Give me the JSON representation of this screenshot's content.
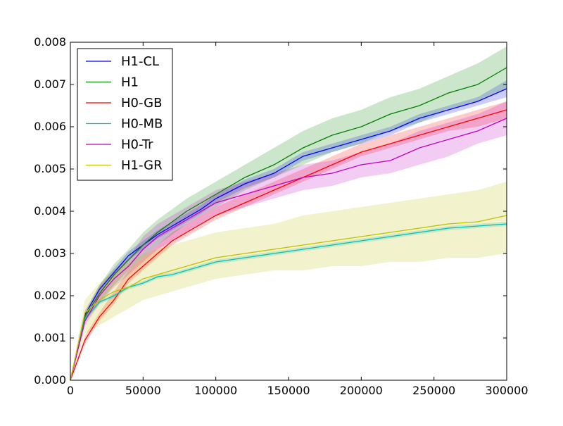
{
  "chart_data": {
    "type": "line",
    "title": "",
    "xlabel": "",
    "ylabel": "",
    "xlim": [
      0,
      300000
    ],
    "ylim": [
      0,
      0.008
    ],
    "x_ticks": [
      0,
      50000,
      100000,
      150000,
      200000,
      250000,
      300000
    ],
    "x_tick_labels": [
      "0",
      "50000",
      "100000",
      "150000",
      "200000",
      "250000",
      "300000"
    ],
    "y_ticks": [
      0,
      0.001,
      0.002,
      0.003,
      0.004,
      0.005,
      0.006,
      0.007,
      0.008
    ],
    "y_tick_labels": [
      "0.000",
      "0.001",
      "0.002",
      "0.003",
      "0.004",
      "0.005",
      "0.006",
      "0.007",
      "0.008"
    ],
    "grid": false,
    "legend_position": "top-left",
    "x": [
      0,
      10000,
      20000,
      30000,
      40000,
      50000,
      60000,
      70000,
      80000,
      90000,
      100000,
      120000,
      140000,
      160000,
      180000,
      200000,
      220000,
      240000,
      260000,
      280000,
      300000
    ],
    "series": [
      {
        "name": "H1-CL",
        "color": "#0000ff",
        "values": [
          0,
          0.00155,
          0.00215,
          0.00255,
          0.00295,
          0.0032,
          0.00345,
          0.00365,
          0.00385,
          0.00405,
          0.0043,
          0.00465,
          0.0049,
          0.0053,
          0.0055,
          0.0057,
          0.0059,
          0.0062,
          0.0064,
          0.0066,
          0.0069
        ],
        "lower": [
          0,
          0.00145,
          0.00205,
          0.00245,
          0.00285,
          0.0031,
          0.00335,
          0.00355,
          0.00375,
          0.00395,
          0.0042,
          0.00455,
          0.0048,
          0.0052,
          0.0054,
          0.0056,
          0.0058,
          0.0061,
          0.0063,
          0.0065,
          0.0067
        ],
        "upper": [
          0,
          0.00165,
          0.00225,
          0.00265,
          0.00305,
          0.0033,
          0.00355,
          0.00375,
          0.00395,
          0.00415,
          0.0044,
          0.00475,
          0.005,
          0.0054,
          0.0056,
          0.0058,
          0.006,
          0.0063,
          0.0065,
          0.0067,
          0.0071
        ]
      },
      {
        "name": "H1",
        "color": "#008000",
        "values": [
          0,
          0.0015,
          0.00205,
          0.0025,
          0.00285,
          0.0032,
          0.0035,
          0.00375,
          0.004,
          0.0042,
          0.0044,
          0.0048,
          0.0051,
          0.0055,
          0.0058,
          0.006,
          0.0063,
          0.0065,
          0.0068,
          0.007,
          0.0074
        ],
        "lower": [
          0,
          0.0014,
          0.00185,
          0.00225,
          0.0026,
          0.0029,
          0.0032,
          0.00345,
          0.0037,
          0.0039,
          0.0041,
          0.0045,
          0.0048,
          0.0051,
          0.0054,
          0.0056,
          0.0059,
          0.0061,
          0.0064,
          0.0066,
          0.0069
        ],
        "upper": [
          0,
          0.0016,
          0.00225,
          0.00275,
          0.0031,
          0.0035,
          0.0038,
          0.00405,
          0.0043,
          0.0045,
          0.0047,
          0.0051,
          0.0055,
          0.0059,
          0.0062,
          0.0064,
          0.0067,
          0.0069,
          0.0072,
          0.0075,
          0.0079
        ]
      },
      {
        "name": "H0-GB",
        "color": "#ff0000",
        "values": [
          0,
          0.00095,
          0.0015,
          0.0019,
          0.0024,
          0.0027,
          0.003,
          0.0033,
          0.0035,
          0.0037,
          0.0039,
          0.0042,
          0.0045,
          0.0048,
          0.0051,
          0.0054,
          0.0056,
          0.0058,
          0.006,
          0.0062,
          0.0064
        ],
        "lower": [
          0,
          0.00085,
          0.0014,
          0.0018,
          0.0023,
          0.0026,
          0.0029,
          0.0032,
          0.0034,
          0.0036,
          0.0038,
          0.0041,
          0.0044,
          0.0047,
          0.005,
          0.0053,
          0.0055,
          0.0057,
          0.0059,
          0.006,
          0.0062
        ],
        "upper": [
          0,
          0.00105,
          0.0016,
          0.0021,
          0.0026,
          0.0029,
          0.0032,
          0.0035,
          0.0037,
          0.0039,
          0.0041,
          0.0044,
          0.0047,
          0.005,
          0.0053,
          0.0056,
          0.0058,
          0.006,
          0.0062,
          0.0064,
          0.0066
        ]
      },
      {
        "name": "H0-MB",
        "color": "#00bfbf",
        "values": [
          0,
          0.00145,
          0.00185,
          0.002,
          0.0022,
          0.0023,
          0.00245,
          0.0025,
          0.0026,
          0.0027,
          0.0028,
          0.0029,
          0.003,
          0.0031,
          0.0032,
          0.0033,
          0.0034,
          0.0035,
          0.0036,
          0.00365,
          0.0037
        ],
        "lower": [
          0,
          0.0014,
          0.0018,
          0.00195,
          0.00215,
          0.00225,
          0.0024,
          0.00245,
          0.00255,
          0.00265,
          0.00275,
          0.00285,
          0.00295,
          0.00305,
          0.00315,
          0.00325,
          0.00335,
          0.00345,
          0.00355,
          0.0036,
          0.00365
        ],
        "upper": [
          0,
          0.0015,
          0.0019,
          0.00205,
          0.00225,
          0.00235,
          0.0025,
          0.00255,
          0.00265,
          0.00275,
          0.00285,
          0.00295,
          0.00305,
          0.00315,
          0.00325,
          0.00335,
          0.00345,
          0.00355,
          0.00365,
          0.0037,
          0.00375
        ]
      },
      {
        "name": "H0-Tr",
        "color": "#bf00bf",
        "values": [
          0,
          0.0014,
          0.002,
          0.0024,
          0.0027,
          0.0031,
          0.0034,
          0.0036,
          0.0038,
          0.004,
          0.0042,
          0.0044,
          0.0046,
          0.0048,
          0.0049,
          0.0051,
          0.0052,
          0.0055,
          0.0057,
          0.0059,
          0.0062
        ],
        "lower": [
          0,
          0.0013,
          0.0018,
          0.0022,
          0.0025,
          0.0028,
          0.0031,
          0.0033,
          0.0035,
          0.0037,
          0.0039,
          0.0041,
          0.0043,
          0.0045,
          0.0046,
          0.0048,
          0.0049,
          0.0051,
          0.0053,
          0.0056,
          0.0058
        ],
        "upper": [
          0,
          0.0015,
          0.0022,
          0.0026,
          0.0029,
          0.0034,
          0.0037,
          0.0039,
          0.0041,
          0.0043,
          0.0045,
          0.0047,
          0.0049,
          0.0051,
          0.0052,
          0.0054,
          0.0056,
          0.0059,
          0.0061,
          0.0063,
          0.0066
        ]
      },
      {
        "name": "H1-GR",
        "color": "#bfbf00",
        "values": [
          0,
          0.0016,
          0.0019,
          0.0021,
          0.0022,
          0.0024,
          0.0025,
          0.0026,
          0.0027,
          0.0028,
          0.0029,
          0.003,
          0.0031,
          0.0032,
          0.0033,
          0.0034,
          0.0035,
          0.0036,
          0.0037,
          0.00375,
          0.0039
        ],
        "lower": [
          0,
          0.0011,
          0.0013,
          0.0015,
          0.0017,
          0.0019,
          0.002,
          0.0021,
          0.0022,
          0.0023,
          0.0024,
          0.0025,
          0.0026,
          0.0026,
          0.0027,
          0.0027,
          0.0028,
          0.0028,
          0.0029,
          0.0029,
          0.003
        ],
        "upper": [
          0,
          0.0019,
          0.0023,
          0.0026,
          0.0028,
          0.003,
          0.0031,
          0.0032,
          0.0033,
          0.0034,
          0.0035,
          0.0036,
          0.0037,
          0.0039,
          0.004,
          0.0041,
          0.0042,
          0.0043,
          0.0044,
          0.0045,
          0.0047
        ]
      }
    ]
  }
}
